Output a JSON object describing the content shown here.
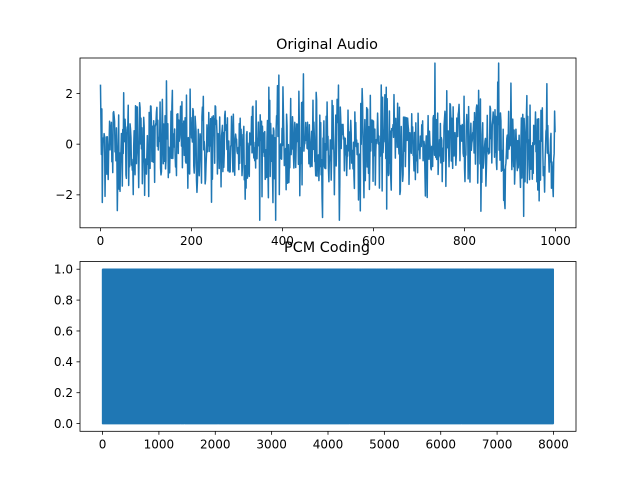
{
  "chart_data": [
    {
      "type": "line",
      "title": "Original Audio",
      "xlabel": "",
      "ylabel": "",
      "xlim": [
        -45,
        1045
      ],
      "ylim": [
        -3.3,
        3.4
      ],
      "xticks": [
        0,
        200,
        400,
        600,
        800,
        1000
      ],
      "yticks": [
        -2,
        0,
        2
      ],
      "xtick_labels": [
        "0",
        "200",
        "400",
        "600",
        "800",
        "1000"
      ],
      "ytick_labels": [
        "−2",
        "0",
        "2"
      ],
      "grid": false,
      "series": [
        {
          "color": "#1f77b4",
          "signal": "gaussian-noise",
          "n_points": 1000,
          "x_start": 0,
          "x_end": 999,
          "mean": 0,
          "std": 1,
          "min": -3.0,
          "max": 3.2
        }
      ]
    },
    {
      "type": "line",
      "title": "PCM Coding",
      "xlabel": "",
      "ylabel": "",
      "xlim": [
        -400,
        8400
      ],
      "ylim": [
        -0.05,
        1.05
      ],
      "xticks": [
        0,
        1000,
        2000,
        3000,
        4000,
        5000,
        6000,
        7000,
        8000
      ],
      "yticks": [
        0.0,
        0.2,
        0.4,
        0.6,
        0.8,
        1.0
      ],
      "xtick_labels": [
        "0",
        "1000",
        "2000",
        "3000",
        "4000",
        "5000",
        "6000",
        "7000",
        "8000"
      ],
      "ytick_labels": [
        "0.0",
        "0.2",
        "0.4",
        "0.6",
        "0.8",
        "1.0"
      ],
      "grid": false,
      "series": [
        {
          "color": "#1f77b4",
          "signal": "binary-bitstream",
          "n_points": 8000,
          "x_start": 0,
          "x_end": 7999,
          "values_set": [
            0,
            1
          ]
        }
      ]
    }
  ]
}
